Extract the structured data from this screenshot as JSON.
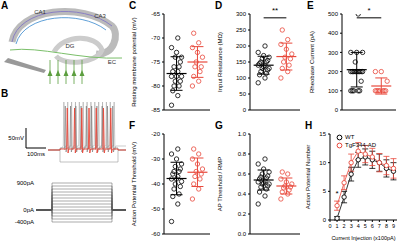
{
  "diagram": {
    "panel": "A",
    "labels": [
      "CA1",
      "CA3",
      "DG",
      "EC"
    ]
  },
  "traces": {
    "panel": "B",
    "scale_bar": {
      "voltage": "50mV",
      "time": "100ms"
    },
    "current_steps": [
      -400,
      -300,
      -200,
      -100,
      0,
      100,
      200,
      300,
      400,
      500,
      600,
      700,
      800,
      900
    ],
    "step_labels": [
      {
        "value": 900,
        "label": "900pA"
      },
      {
        "value": 0,
        "label": "0pA"
      },
      {
        "value": -400,
        "label": "-400pA"
      }
    ]
  },
  "chart_data": [
    {
      "panel": "C",
      "type": "scatter",
      "y_label": "Resting membrane potential (mV)",
      "ylim": [
        -85,
        -65
      ],
      "yticks": [
        -85,
        -80,
        -75,
        -70,
        -65
      ],
      "marker": "circle",
      "series": [
        {
          "name": "WT",
          "color": "#000000",
          "values": [
            -84,
            -82,
            -81,
            -80,
            -80,
            -79,
            -79,
            -78,
            -78,
            -78,
            -77,
            -77,
            -76,
            -76,
            -75,
            -74,
            -74,
            -73,
            -72,
            -70
          ],
          "mean": -77.4,
          "sd": 3.5
        },
        {
          "name": "TgF344-AD",
          "color": "#e8483b",
          "values": [
            -80,
            -79,
            -78,
            -77,
            -76,
            -76,
            -75,
            -74,
            -73,
            -72,
            -71,
            -69
          ],
          "mean": -75,
          "sd": 3.2
        }
      ]
    },
    {
      "panel": "D",
      "type": "scatter",
      "y_label": "Input Resistance (MΩ)",
      "ylim": [
        0,
        300
      ],
      "yticks": [
        0,
        50,
        100,
        150,
        200,
        250,
        300
      ],
      "marker": "circle",
      "annotation": "**",
      "series": [
        {
          "name": "WT",
          "color": "#000000",
          "values": [
            85,
            100,
            110,
            115,
            120,
            125,
            130,
            130,
            135,
            140,
            140,
            145,
            150,
            150,
            155,
            160,
            165,
            170,
            180,
            200
          ],
          "mean": 140,
          "sd": 28
        },
        {
          "name": "TgF344-AD",
          "color": "#e8483b",
          "values": [
            100,
            120,
            130,
            140,
            150,
            160,
            165,
            175,
            190,
            205,
            220,
            250
          ],
          "mean": 167,
          "sd": 42
        }
      ]
    },
    {
      "panel": "E",
      "type": "scatter",
      "y_label": "Rheobase Current (pA)",
      "ylim": [
        0,
        500
      ],
      "yticks": [
        0,
        100,
        200,
        300,
        400,
        500
      ],
      "marker": "circle",
      "annotation": "*",
      "series": [
        {
          "name": "WT",
          "color": "#000000",
          "values": [
            100,
            100,
            100,
            100,
            100,
            150,
            200,
            200,
            200,
            200,
            200,
            200,
            200,
            200,
            200,
            250,
            300,
            300,
            300,
            500
          ],
          "mean": 210,
          "sd": 90
        },
        {
          "name": "TgF344-AD",
          "color": "#e8483b",
          "values": [
            100,
            100,
            100,
            100,
            100,
            100,
            100,
            150,
            200,
            200
          ],
          "mean": 125,
          "sd": 42
        }
      ]
    },
    {
      "panel": "F",
      "type": "scatter",
      "y_label": "Action Potential Threshold (mV)",
      "ylim": [
        -60,
        -20
      ],
      "yticks": [
        -60,
        -50,
        -40,
        -30,
        -20
      ],
      "marker": "circle",
      "series": [
        {
          "name": "WT",
          "color": "#000000",
          "values": [
            -55,
            -48,
            -45,
            -44,
            -42,
            -41,
            -40,
            -39,
            -38,
            -38,
            -37,
            -36,
            -35,
            -35,
            -34,
            -33,
            -32,
            -30,
            -28,
            -26
          ],
          "mean": -37.8,
          "sd": 6.5
        },
        {
          "name": "TgF344-AD",
          "color": "#e8483b",
          "values": [
            -46,
            -42,
            -40,
            -38,
            -37,
            -36,
            -35,
            -34,
            -32,
            -30,
            -28,
            -26
          ],
          "mean": -35.3,
          "sd": 5.7
        }
      ]
    },
    {
      "panel": "G",
      "type": "scatter",
      "y_label": "AP Threshold / RMP",
      "ylim": [
        0,
        1
      ],
      "yticks": [
        {
          "value": 0,
          "label": "0.0"
        },
        0.2,
        0.4,
        0.6,
        0.8,
        {
          "value": 1,
          "label": "1.0"
        }
      ],
      "marker": "circle",
      "series": [
        {
          "name": "WT",
          "color": "#000000",
          "values": [
            0.3,
            0.38,
            0.42,
            0.45,
            0.47,
            0.48,
            0.5,
            0.5,
            0.51,
            0.52,
            0.53,
            0.55,
            0.56,
            0.57,
            0.58,
            0.6,
            0.62,
            0.65,
            0.7,
            0.75
          ],
          "mean": 0.54,
          "sd": 0.1
        },
        {
          "name": "TgF344-AD",
          "color": "#e8483b",
          "values": [
            0.35,
            0.4,
            0.42,
            0.44,
            0.46,
            0.47,
            0.48,
            0.5,
            0.52,
            0.55,
            0.6,
            0.62
          ],
          "mean": 0.48,
          "sd": 0.08
        }
      ]
    },
    {
      "panel": "H",
      "type": "line",
      "x_label": "Current Injection (x100pA)",
      "y_label": "Action Potential Number",
      "x": [
        1,
        2,
        3,
        4,
        5,
        6,
        7,
        8,
        9
      ],
      "xlim": [
        0,
        9.5
      ],
      "xticks": [
        0,
        1,
        2,
        3,
        4,
        5,
        6,
        7,
        8,
        9
      ],
      "ylim": [
        0,
        15
      ],
      "yticks": [
        0,
        5,
        10,
        15
      ],
      "marker": "circle",
      "legend": "upper left",
      "annotation": {
        "text": "*",
        "x": 1
      },
      "series": [
        {
          "name": "WT",
          "color": "#000000",
          "values": [
            0.3,
            4,
            8,
            10.5,
            11,
            10.5,
            10,
            9,
            8.5
          ],
          "errors": [
            0.3,
            1,
            1.2,
            1.3,
            1.4,
            1.5,
            1.5,
            1.5,
            1.5
          ]
        },
        {
          "name": "TgF344-AD",
          "color": "#e8483b",
          "values": [
            2.5,
            6.5,
            10,
            12,
            11.5,
            11,
            10,
            9.5,
            9
          ],
          "errors": [
            0.8,
            1.2,
            1.5,
            1.5,
            1.5,
            1.5,
            1.6,
            1.6,
            1.7
          ]
        }
      ]
    }
  ]
}
